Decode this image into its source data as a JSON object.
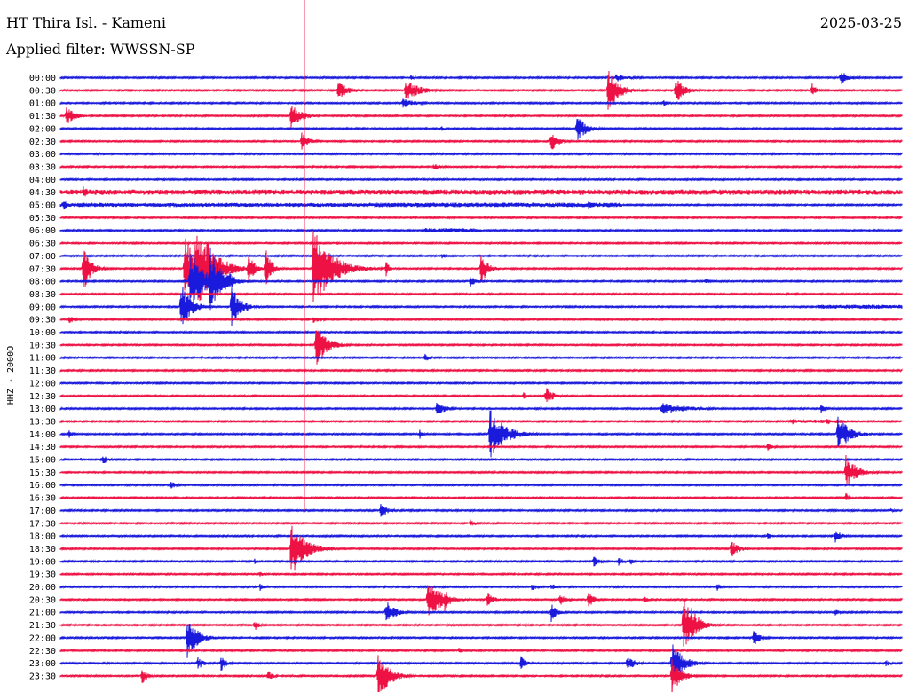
{
  "header": {
    "station": "HT Thira Isl. - Kameni",
    "date": "2025-03-25",
    "filter": "Applied filter: WWSSN-SP"
  },
  "chart_data": {
    "type": "line",
    "title": "HT Thira Isl. - Kameni",
    "subtitle": "Applied filter: WWSSN-SP",
    "date": "2025-03-25",
    "ylabel": "HHZ - 2000O",
    "row_labels": [
      "00:00",
      "00:30",
      "01:00",
      "01:30",
      "02:00",
      "02:30",
      "03:00",
      "03:30",
      "04:00",
      "04:30",
      "05:00",
      "05:30",
      "06:00",
      "06:30",
      "07:00",
      "07:30",
      "08:00",
      "08:30",
      "09:00",
      "09:30",
      "10:00",
      "10:30",
      "11:00",
      "11:30",
      "12:00",
      "12:30",
      "13:00",
      "13:30",
      "14:00",
      "14:30",
      "15:00",
      "15:30",
      "16:00",
      "16:30",
      "17:00",
      "17:30",
      "18:00",
      "18:30",
      "19:00",
      "19:30",
      "20:00",
      "20:30",
      "21:00",
      "21:30",
      "22:00",
      "22:30",
      "23:00",
      "23:30"
    ],
    "colors": {
      "even": "#1a1adc",
      "odd": "#ee1144",
      "marker": "#ee1144"
    },
    "minutes_per_row": 30,
    "current_time": "17:00",
    "marker_minute": 8.7,
    "events": [
      [
        0,
        19.8,
        5,
        14
      ],
      [
        0,
        12.5,
        3,
        4
      ],
      [
        0,
        27.8,
        9,
        10
      ],
      [
        1,
        9.9,
        12,
        10
      ],
      [
        1,
        12.3,
        13,
        15
      ],
      [
        1,
        19.5,
        26,
        12
      ],
      [
        1,
        21.9,
        17,
        10
      ],
      [
        1,
        26.8,
        8,
        5
      ],
      [
        2,
        21.5,
        4,
        5
      ],
      [
        2,
        12.2,
        6,
        14
      ],
      [
        3,
        0.2,
        11,
        10
      ],
      [
        3,
        8.2,
        15,
        12
      ],
      [
        4,
        18.4,
        15,
        11
      ],
      [
        4,
        13.6,
        3,
        4
      ],
      [
        5,
        8.6,
        11,
        8
      ],
      [
        5,
        17.5,
        12,
        8
      ],
      [
        7,
        13.3,
        5,
        6
      ],
      [
        9,
        0.8,
        8,
        6
      ],
      [
        10,
        0.1,
        7,
        7
      ],
      [
        10,
        18.8,
        6,
        7
      ],
      [
        14,
        13.6,
        3,
        7
      ],
      [
        15,
        0.8,
        30,
        8
      ],
      [
        15,
        4.4,
        40,
        14
      ],
      [
        15,
        4.8,
        50,
        20
      ],
      [
        15,
        5.2,
        38,
        10
      ],
      [
        15,
        6.7,
        22,
        6
      ],
      [
        15,
        7.3,
        28,
        6
      ],
      [
        15,
        9.0,
        48,
        20
      ],
      [
        15,
        9.9,
        12,
        4
      ],
      [
        15,
        11.6,
        10,
        4
      ],
      [
        15,
        15.0,
        20,
        7
      ],
      [
        16,
        4.6,
        40,
        14
      ],
      [
        16,
        5.3,
        45,
        12
      ],
      [
        16,
        6.0,
        14,
        6
      ],
      [
        16,
        14.6,
        7,
        6
      ],
      [
        16,
        23.0,
        4,
        5
      ],
      [
        18,
        4.3,
        30,
        10
      ],
      [
        18,
        6.1,
        25,
        10
      ],
      [
        19,
        0.3,
        6,
        5
      ],
      [
        19,
        9.0,
        4,
        10
      ],
      [
        21,
        9.1,
        26,
        12
      ],
      [
        22,
        13.0,
        6,
        5
      ],
      [
        25,
        17.3,
        11,
        8
      ],
      [
        25,
        16.5,
        5,
        4
      ],
      [
        26,
        13.4,
        11,
        8
      ],
      [
        26,
        27.1,
        6,
        6
      ],
      [
        26,
        21.4,
        7,
        30
      ],
      [
        27,
        27.3,
        5,
        7
      ],
      [
        27,
        26.1,
        4,
        6
      ],
      [
        28,
        15.3,
        30,
        16
      ],
      [
        28,
        27.7,
        24,
        12
      ],
      [
        28,
        12.8,
        6,
        5
      ],
      [
        28,
        0.3,
        5,
        5
      ],
      [
        29,
        25.2,
        5,
        6
      ],
      [
        30,
        0.7,
        3,
        3
      ],
      [
        30,
        1.5,
        6,
        6
      ],
      [
        31,
        28.0,
        20,
        12
      ],
      [
        32,
        3.9,
        6,
        6
      ],
      [
        33,
        28.0,
        6,
        6
      ],
      [
        34,
        11.4,
        10,
        8
      ],
      [
        34,
        29.6,
        3,
        3
      ],
      [
        35,
        14.6,
        5,
        5
      ],
      [
        36,
        25.2,
        5,
        5
      ],
      [
        36,
        27.6,
        9,
        7
      ],
      [
        36,
        25.3,
        3,
        3
      ],
      [
        37,
        8.2,
        35,
        15
      ],
      [
        37,
        23.9,
        12,
        8
      ],
      [
        38,
        19.0,
        7,
        6
      ],
      [
        38,
        19.9,
        6,
        5
      ],
      [
        38,
        20.3,
        5,
        5
      ],
      [
        38,
        6.9,
        4,
        4
      ],
      [
        39,
        7.1,
        4,
        4
      ],
      [
        40,
        16.8,
        5,
        6
      ],
      [
        40,
        17.5,
        5,
        5
      ],
      [
        40,
        23.4,
        5,
        5
      ],
      [
        40,
        7.1,
        5,
        5
      ],
      [
        41,
        13.1,
        25,
        14
      ],
      [
        41,
        13.7,
        14,
        6
      ],
      [
        41,
        15.2,
        10,
        7
      ],
      [
        41,
        17.8,
        8,
        6
      ],
      [
        41,
        18.8,
        12,
        6
      ],
      [
        41,
        20.8,
        5,
        5
      ],
      [
        42,
        11.6,
        15,
        10
      ],
      [
        42,
        17.5,
        12,
        6
      ],
      [
        42,
        27.6,
        5,
        5
      ],
      [
        43,
        6.9,
        8,
        5
      ],
      [
        43,
        22.2,
        32,
        12
      ],
      [
        43,
        22.5,
        20,
        10
      ],
      [
        44,
        4.5,
        25,
        12
      ],
      [
        44,
        24.7,
        10,
        8
      ],
      [
        45,
        14.2,
        4,
        4
      ],
      [
        46,
        4.9,
        8,
        6
      ],
      [
        46,
        5.7,
        11,
        6
      ],
      [
        46,
        16.4,
        10,
        6
      ],
      [
        46,
        20.2,
        10,
        8
      ],
      [
        46,
        21.8,
        25,
        12
      ],
      [
        46,
        29.4,
        5,
        5
      ],
      [
        47,
        11.3,
        30,
        12
      ],
      [
        47,
        21.8,
        22,
        10
      ],
      [
        47,
        2.9,
        10,
        6
      ],
      [
        47,
        7.4,
        7,
        5
      ]
    ],
    "tremor_bands": [
      [
        9,
        0,
        30,
        3
      ],
      [
        10,
        0,
        17,
        2.2
      ],
      [
        10,
        11,
        20,
        2.5
      ],
      [
        12,
        13,
        15,
        2.4
      ],
      [
        18,
        27,
        30,
        2.2
      ],
      [
        27,
        26,
        28,
        2
      ]
    ]
  }
}
